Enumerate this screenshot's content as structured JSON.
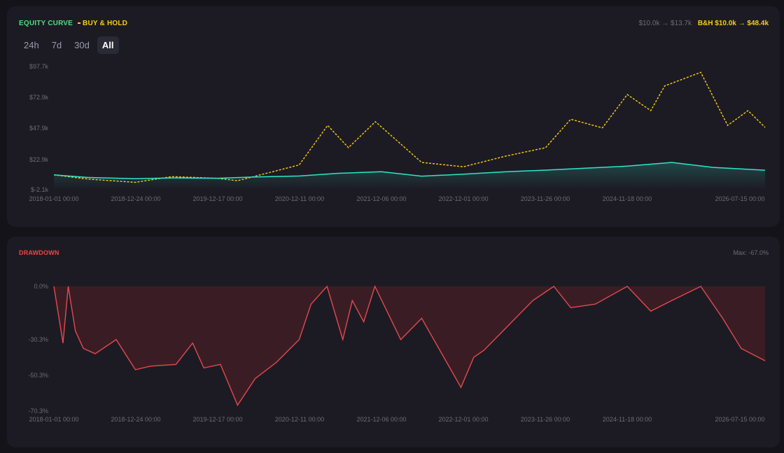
{
  "equity_panel": {
    "legend": {
      "equity_label": "EQUITY CURVE",
      "bh_label": "BUY & HOLD"
    },
    "summary": {
      "strategy_text": "$10.0k → $13.7k",
      "bh_text": "B&H $10.0k → $48.4k"
    },
    "tabs": [
      {
        "label": "24h",
        "active": false
      },
      {
        "label": "7d",
        "active": false
      },
      {
        "label": "30d",
        "active": false
      },
      {
        "label": "All",
        "active": true
      }
    ]
  },
  "drawdown_panel": {
    "title": "DRAWDOWN",
    "max_text": "Max: -67.0%"
  },
  "colors": {
    "equity": "#2ee6c8",
    "buy_hold": "#facc15",
    "drawdown": "#e5484d",
    "drawdown_fill": "#3a1d24",
    "axis_text": "#6b6b78"
  },
  "chart_data": [
    {
      "type": "line",
      "title": "EQUITY CURVE",
      "x_tick_labels": [
        "2018-01-01 00:00",
        "2018-12-24 00:00",
        "2019-12-17 00:00",
        "2020-12-11 00:00",
        "2021-12-06 00:00",
        "2022-12-01 00:00",
        "2023-11-26 00:00",
        "2024-11-18 00:00",
        "2026-07-15 00:00"
      ],
      "y_tick_labels": [
        "$97.7k",
        "$72.9k",
        "$47.9k",
        "$22.9k",
        "$-2.1k"
      ],
      "x_range": [
        "2018-01-01",
        "2026-07-15"
      ],
      "ylim": [
        -2100,
        97700
      ],
      "grid": false,
      "series": [
        {
          "name": "EQUITY CURVE",
          "style": "solid",
          "x": [
            "2018-01-01",
            "2018-06-01",
            "2018-12-24",
            "2019-06-01",
            "2019-12-17",
            "2020-06-01",
            "2020-12-11",
            "2021-06-01",
            "2021-12-06",
            "2022-06-01",
            "2022-12-01",
            "2023-06-01",
            "2023-11-26",
            "2024-06-01",
            "2024-11-18",
            "2025-06-01",
            "2025-12-01",
            "2026-07-15"
          ],
          "values": [
            10000,
            7800,
            6800,
            7500,
            7200,
            8200,
            9000,
            11200,
            12500,
            8900,
            10500,
            12400,
            13800,
            15500,
            17000,
            20000,
            16000,
            13700
          ]
        },
        {
          "name": "BUY & HOLD",
          "style": "dashed",
          "x": [
            "2018-01-01",
            "2018-06-01",
            "2018-12-24",
            "2019-06-01",
            "2019-12-17",
            "2020-03-15",
            "2020-12-11",
            "2021-04-15",
            "2021-07-15",
            "2021-11-10",
            "2022-06-01",
            "2022-12-01",
            "2023-06-01",
            "2023-11-26",
            "2024-03-15",
            "2024-08-01",
            "2024-11-18",
            "2025-03-01",
            "2025-05-01",
            "2025-10-06",
            "2026-02-01",
            "2026-05-01",
            "2026-07-15"
          ],
          "values": [
            10000,
            6500,
            3900,
            8500,
            7200,
            5200,
            18000,
            50000,
            32000,
            53000,
            20000,
            16500,
            25000,
            32000,
            55000,
            48000,
            75000,
            62000,
            82000,
            93000,
            50000,
            62000,
            48400
          ]
        }
      ]
    },
    {
      "type": "area",
      "title": "DRAWDOWN",
      "x_tick_labels": [
        "2018-01-01 00:00",
        "2018-12-24 00:00",
        "2019-12-17 00:00",
        "2020-12-11 00:00",
        "2021-12-06 00:00",
        "2022-12-01 00:00",
        "2023-11-26 00:00",
        "2024-11-18 00:00",
        "2026-07-15 00:00"
      ],
      "y_tick_labels": [
        "0.0%",
        "-30.3%",
        "-50.3%",
        "-70.3%"
      ],
      "x_range": [
        "2018-01-01",
        "2026-07-15"
      ],
      "ylim": [
        -70.3,
        0
      ],
      "grid": false,
      "series": [
        {
          "name": "DRAWDOWN",
          "x": [
            "2018-01-01",
            "2018-02-10",
            "2018-03-05",
            "2018-04-05",
            "2018-05-10",
            "2018-07-01",
            "2018-10-01",
            "2018-12-24",
            "2019-03-01",
            "2019-06-20",
            "2019-09-01",
            "2019-10-20",
            "2020-01-01",
            "2020-03-16",
            "2020-06-01",
            "2020-09-01",
            "2020-12-11",
            "2021-02-01",
            "2021-04-12",
            "2021-06-20",
            "2021-08-01",
            "2021-09-20",
            "2021-11-08",
            "2022-03-01",
            "2022-06-01",
            "2022-11-20",
            "2023-01-15",
            "2023-03-01",
            "2023-06-01",
            "2023-10-01",
            "2024-01-01",
            "2024-03-15",
            "2024-07-01",
            "2024-11-18",
            "2025-03-01",
            "2025-06-01",
            "2025-10-06",
            "2026-01-10",
            "2026-04-01",
            "2026-07-15"
          ],
          "values": [
            0,
            -32,
            0,
            -25,
            -35,
            -38,
            -30,
            -47,
            -45,
            -44,
            -32,
            -46,
            -44,
            -67,
            -52,
            -43,
            -30,
            -10,
            0,
            -30,
            -8,
            -20,
            0,
            -30,
            -18,
            -57,
            -40,
            -36,
            -24,
            -8,
            0,
            -12,
            -10,
            0,
            -14,
            -8,
            0,
            -18,
            -35,
            -42
          ]
        }
      ]
    }
  ]
}
